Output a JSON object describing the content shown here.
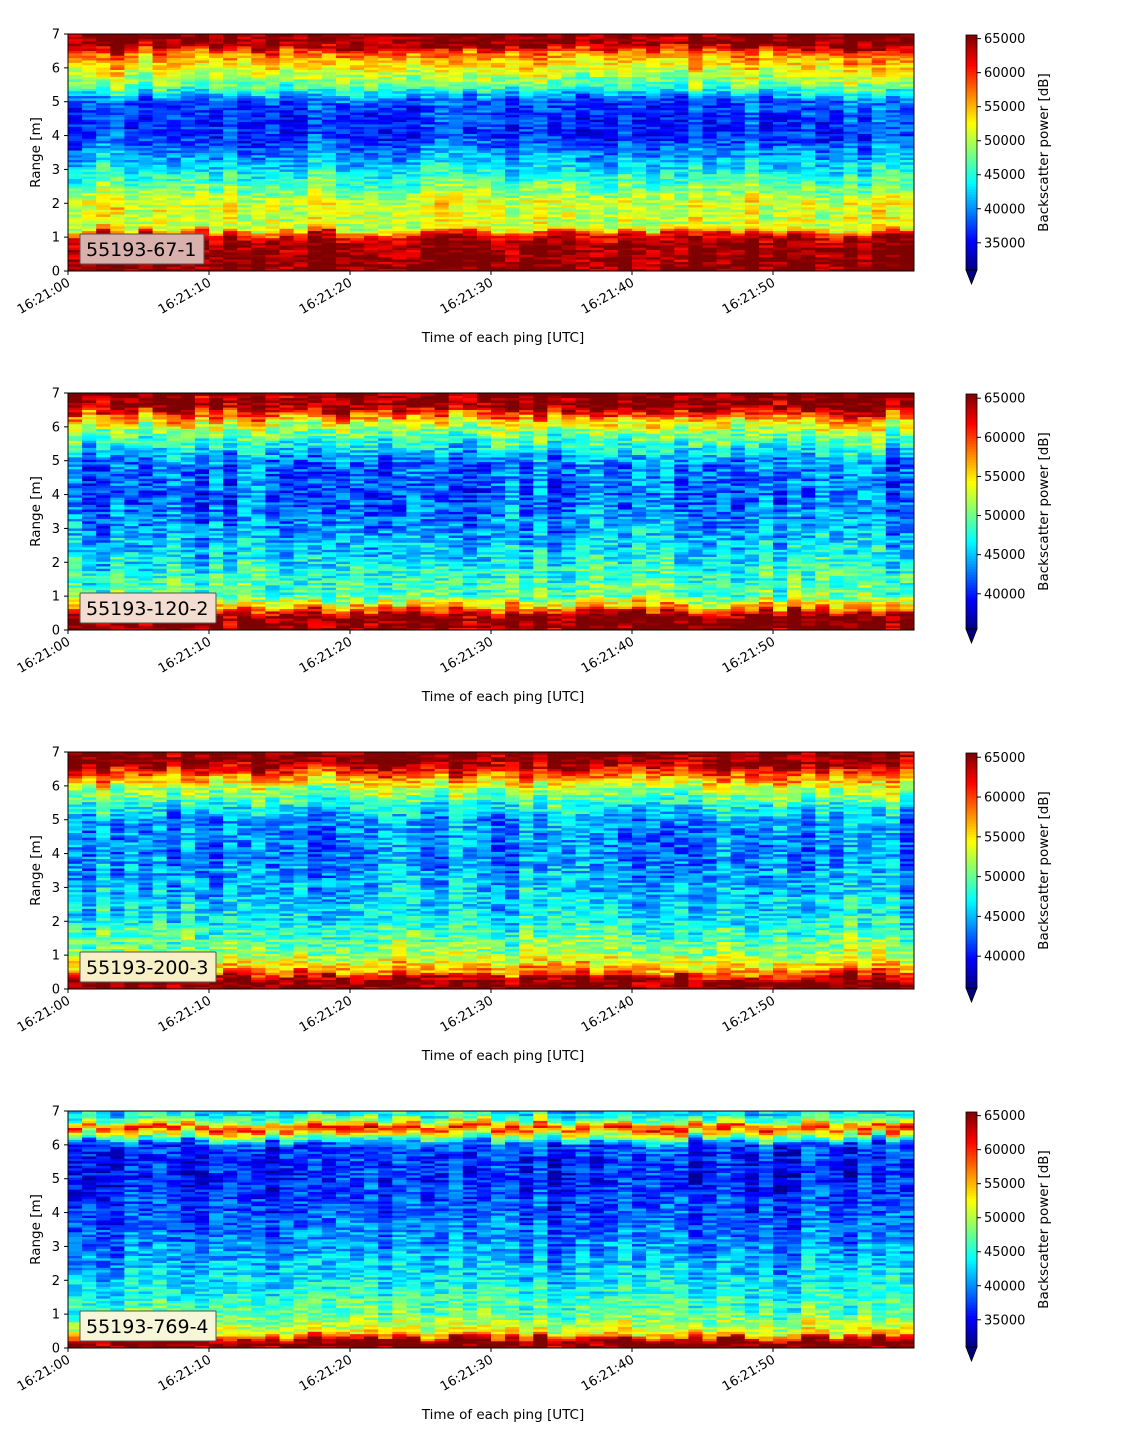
{
  "figure": {
    "x_axis_label": "Time of each ping [UTC]",
    "y_axis_label": "Range [m]",
    "colorbar_label": "Backscatter power [dB]",
    "colormap": "jet",
    "colormap_stops": [
      "#00007f",
      "#0000ff",
      "#0080ff",
      "#00ffff",
      "#7dff7a",
      "#ffff00",
      "#ff8000",
      "#ff0000",
      "#7f0000"
    ],
    "colorbar_extend": "min"
  },
  "chart_data": [
    {
      "type": "heatmap",
      "station": "55193-67-1",
      "label_box_color": "#d8b1ad",
      "x_time_range": [
        "16:21:00",
        "16:21:59"
      ],
      "x_ticks": [
        "16:21:00",
        "16:21:10",
        "16:21:20",
        "16:21:30",
        "16:21:40",
        "16:21:50"
      ],
      "ylim": [
        0,
        7
      ],
      "y_ticks": [
        "0",
        "1",
        "2",
        "3",
        "4",
        "5",
        "6",
        "7"
      ],
      "clim": [
        31000,
        65535
      ],
      "colorbar_ticks": [
        "35000",
        "40000",
        "45000",
        "50000",
        "55000",
        "60000",
        "65000"
      ],
      "profile": [
        {
          "range_m": 0.0,
          "backscatter": 65535
        },
        {
          "range_m": 0.7,
          "backscatter": 65535
        },
        {
          "range_m": 1.05,
          "backscatter": 63000
        },
        {
          "range_m": 1.3,
          "backscatter": 51000
        },
        {
          "range_m": 2.0,
          "backscatter": 52000
        },
        {
          "range_m": 3.0,
          "backscatter": 44000
        },
        {
          "range_m": 4.0,
          "backscatter": 37000
        },
        {
          "range_m": 5.0,
          "backscatter": 38000
        },
        {
          "range_m": 5.5,
          "backscatter": 48000
        },
        {
          "range_m": 6.0,
          "backscatter": 53000
        },
        {
          "range_m": 6.4,
          "backscatter": 57000
        },
        {
          "range_m": 6.7,
          "backscatter": 65535
        },
        {
          "range_m": 7.0,
          "backscatter": 65535
        }
      ],
      "ping_variability": 4500
    },
    {
      "type": "heatmap",
      "station": "55193-120-2",
      "label_box_color": "#f3ddd0",
      "x_time_range": [
        "16:21:00",
        "16:21:59"
      ],
      "x_ticks": [
        "16:21:00",
        "16:21:10",
        "16:21:20",
        "16:21:30",
        "16:21:40",
        "16:21:50"
      ],
      "ylim": [
        0,
        7
      ],
      "y_ticks": [
        "0",
        "1",
        "2",
        "3",
        "4",
        "5",
        "6",
        "7"
      ],
      "clim": [
        35500,
        65535
      ],
      "colorbar_ticks": [
        "40000",
        "45000",
        "50000",
        "55000",
        "60000",
        "65000"
      ],
      "profile": [
        {
          "range_m": 0.0,
          "backscatter": 65535
        },
        {
          "range_m": 0.45,
          "backscatter": 65535
        },
        {
          "range_m": 0.65,
          "backscatter": 58000
        },
        {
          "range_m": 1.0,
          "backscatter": 50000
        },
        {
          "range_m": 2.0,
          "backscatter": 47000
        },
        {
          "range_m": 3.0,
          "backscatter": 44000
        },
        {
          "range_m": 4.0,
          "backscatter": 42000
        },
        {
          "range_m": 5.0,
          "backscatter": 43000
        },
        {
          "range_m": 5.5,
          "backscatter": 48000
        },
        {
          "range_m": 6.0,
          "backscatter": 52000
        },
        {
          "range_m": 6.4,
          "backscatter": 60000
        },
        {
          "range_m": 6.6,
          "backscatter": 65535
        },
        {
          "range_m": 7.0,
          "backscatter": 65535
        }
      ],
      "ping_variability": 5000
    },
    {
      "type": "heatmap",
      "station": "55193-200-3",
      "label_box_color": "#f7f0c6",
      "x_time_range": [
        "16:21:00",
        "16:21:59"
      ],
      "x_ticks": [
        "16:21:00",
        "16:21:10",
        "16:21:20",
        "16:21:30",
        "16:21:40",
        "16:21:50"
      ],
      "ylim": [
        0,
        7
      ],
      "y_ticks": [
        "0",
        "1",
        "2",
        "3",
        "4",
        "5",
        "6",
        "7"
      ],
      "clim": [
        36000,
        65535
      ],
      "colorbar_ticks": [
        "40000",
        "45000",
        "50000",
        "55000",
        "60000",
        "65000"
      ],
      "profile": [
        {
          "range_m": 0.0,
          "backscatter": 65535
        },
        {
          "range_m": 0.3,
          "backscatter": 65535
        },
        {
          "range_m": 0.5,
          "backscatter": 58000
        },
        {
          "range_m": 1.0,
          "backscatter": 52000
        },
        {
          "range_m": 2.0,
          "backscatter": 47000
        },
        {
          "range_m": 3.0,
          "backscatter": 45000
        },
        {
          "range_m": 4.0,
          "backscatter": 43500
        },
        {
          "range_m": 5.0,
          "backscatter": 44000
        },
        {
          "range_m": 5.5,
          "backscatter": 48000
        },
        {
          "range_m": 6.0,
          "backscatter": 53000
        },
        {
          "range_m": 6.5,
          "backscatter": 62000
        },
        {
          "range_m": 6.7,
          "backscatter": 65535
        },
        {
          "range_m": 7.0,
          "backscatter": 65535
        }
      ],
      "ping_variability": 4800
    },
    {
      "type": "heatmap",
      "station": "55193-769-4",
      "label_box_color": "#f6f7d9",
      "x_time_range": [
        "16:21:00",
        "16:21:59"
      ],
      "x_ticks": [
        "16:21:00",
        "16:21:10",
        "16:21:20",
        "16:21:30",
        "16:21:40",
        "16:21:50"
      ],
      "ylim": [
        0,
        7
      ],
      "y_ticks": [
        "0",
        "1",
        "2",
        "3",
        "4",
        "5",
        "6",
        "7"
      ],
      "clim": [
        31000,
        65535
      ],
      "colorbar_ticks": [
        "35000",
        "40000",
        "45000",
        "50000",
        "55000",
        "60000",
        "65000"
      ],
      "profile": [
        {
          "range_m": 0.0,
          "backscatter": 65535
        },
        {
          "range_m": 0.22,
          "backscatter": 65535
        },
        {
          "range_m": 0.45,
          "backscatter": 52000
        },
        {
          "range_m": 1.0,
          "backscatter": 47000
        },
        {
          "range_m": 2.0,
          "backscatter": 43000
        },
        {
          "range_m": 3.0,
          "backscatter": 40000
        },
        {
          "range_m": 4.0,
          "backscatter": 38000
        },
        {
          "range_m": 5.0,
          "backscatter": 36000
        },
        {
          "range_m": 6.0,
          "backscatter": 37000
        },
        {
          "range_m": 6.3,
          "backscatter": 50000
        },
        {
          "range_m": 6.5,
          "backscatter": 60000
        },
        {
          "range_m": 6.75,
          "backscatter": 47000
        },
        {
          "range_m": 7.0,
          "backscatter": 42000
        }
      ],
      "ping_variability": 5000
    }
  ]
}
